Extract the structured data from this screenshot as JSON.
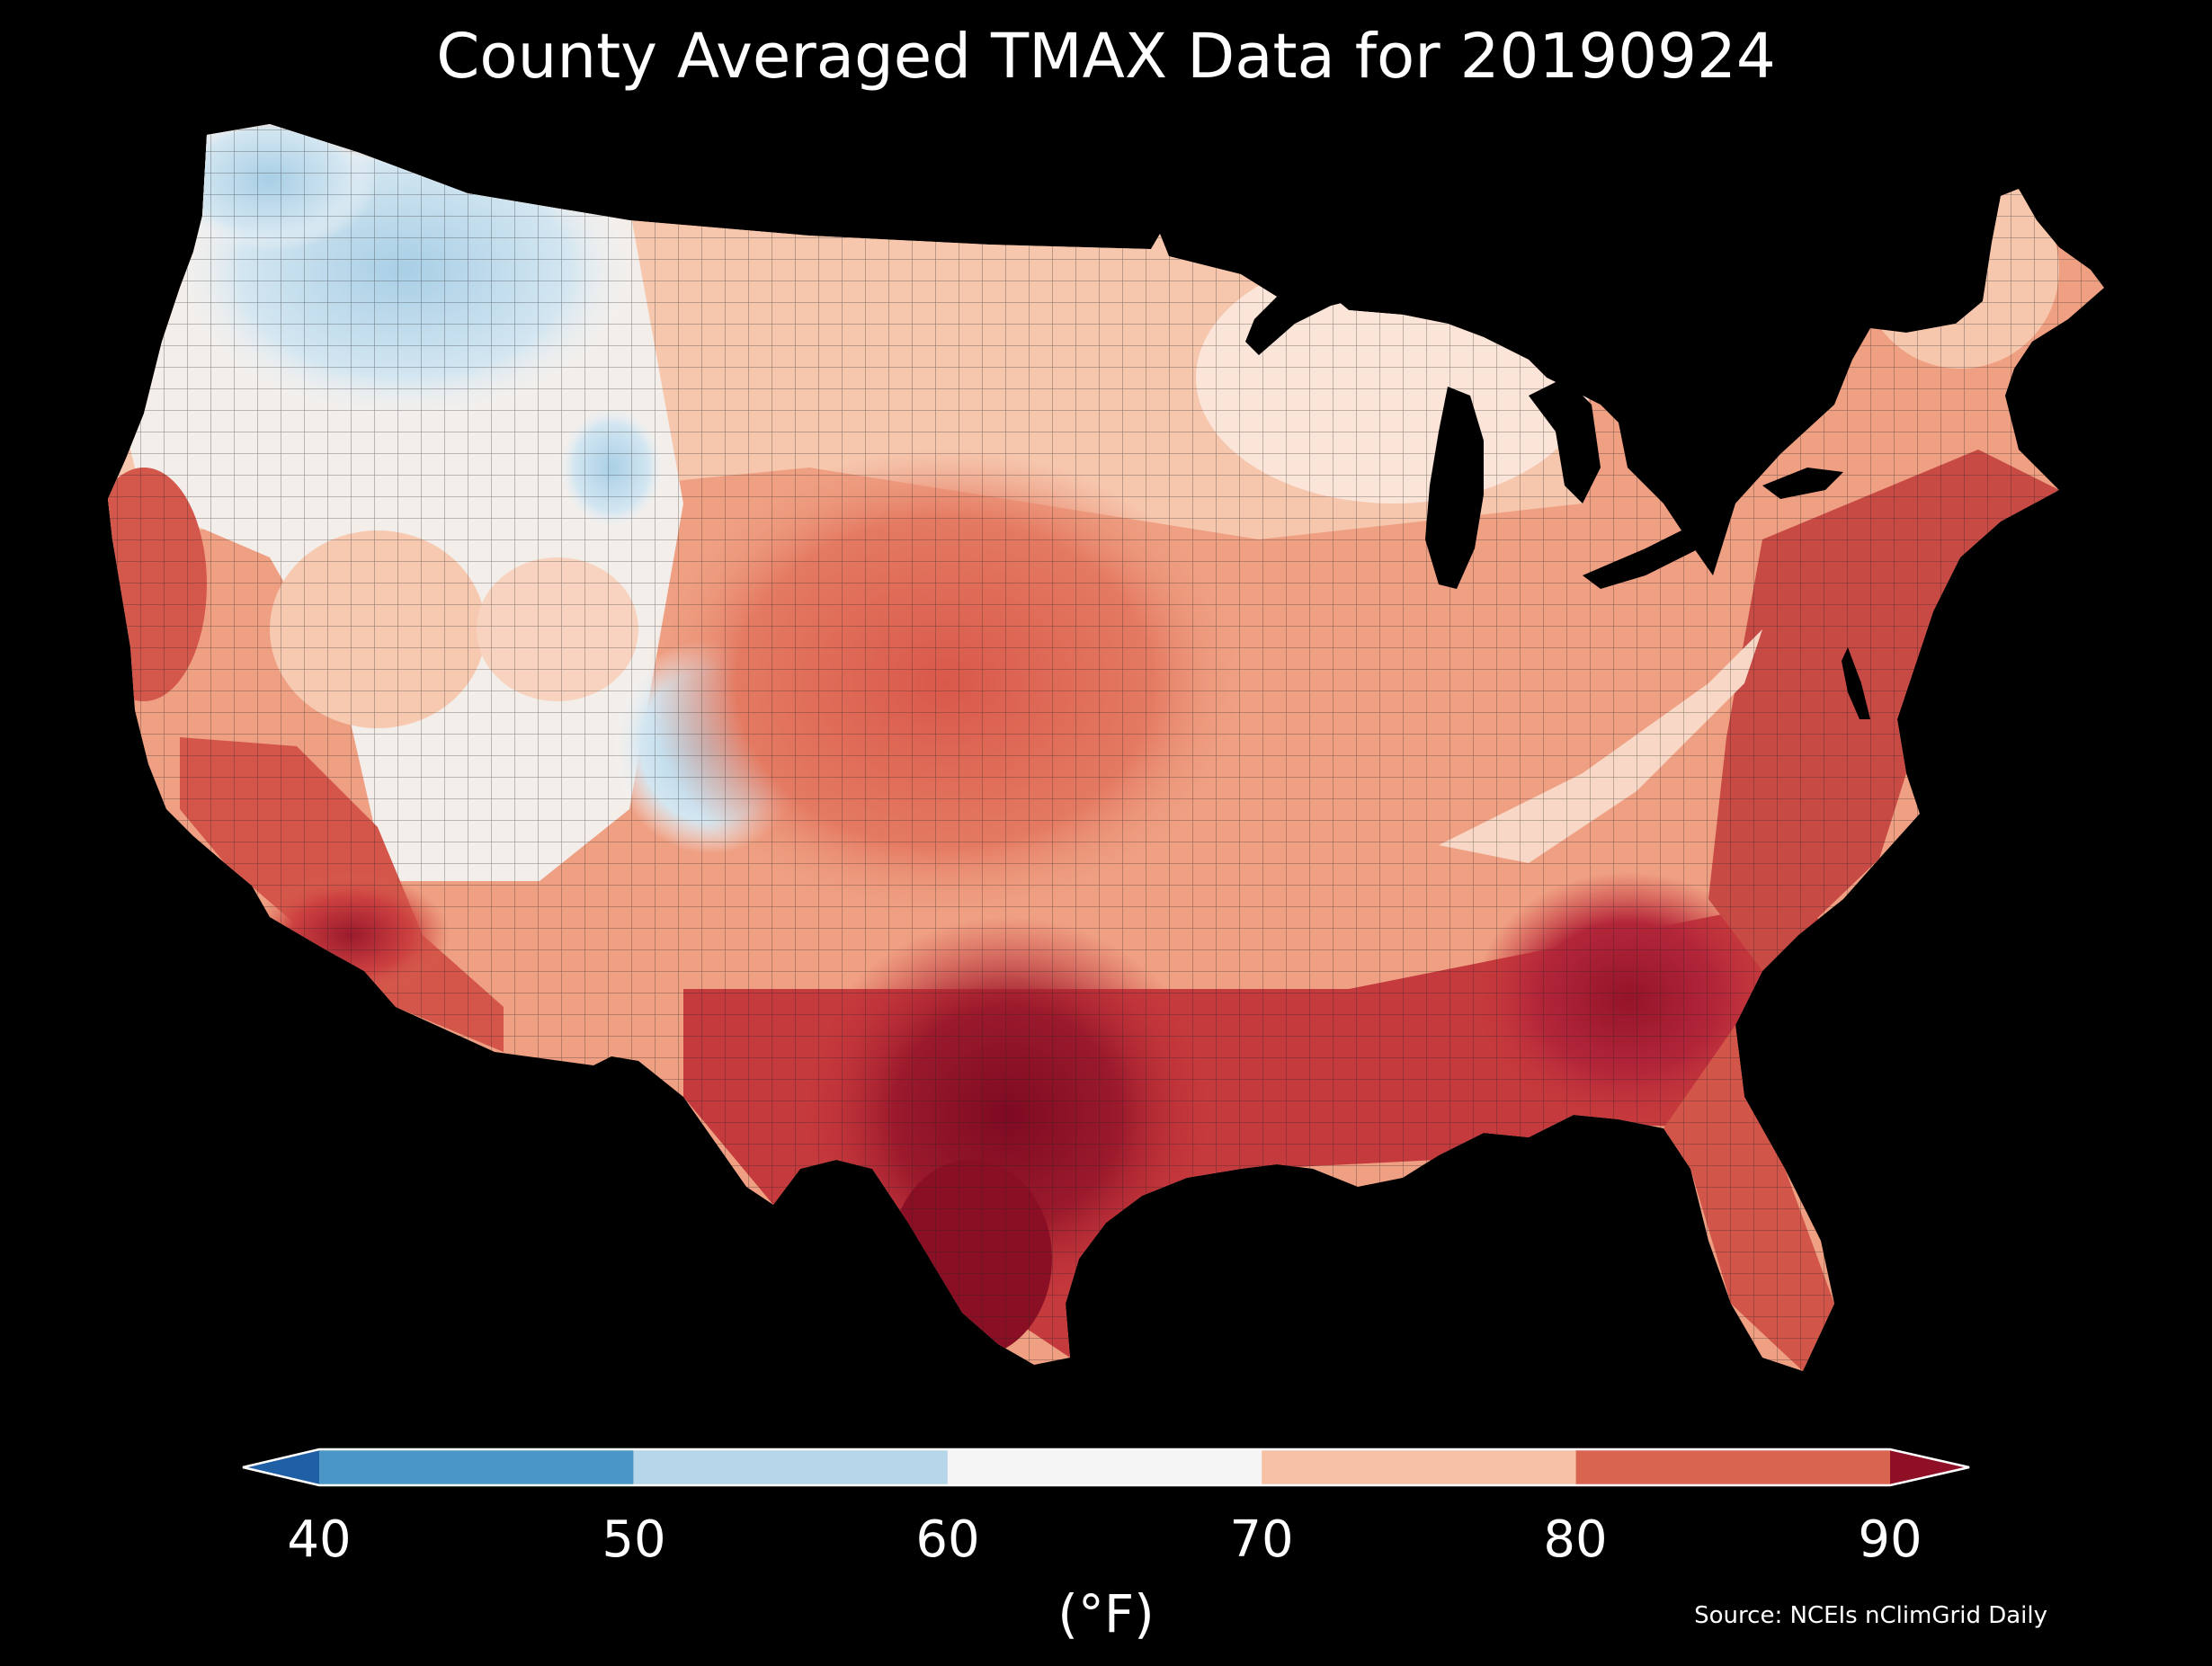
{
  "title": "County Averaged TMAX Data for 20190924",
  "colorbar": {
    "label": "(°F)",
    "ticks": [
      "40",
      "50",
      "60",
      "70",
      "80",
      "90"
    ],
    "bins": [
      {
        "range": "<40",
        "color": "#1f5fa6"
      },
      {
        "range": "40-50",
        "color": "#4a96c6"
      },
      {
        "range": "50-60",
        "color": "#b6d6e9"
      },
      {
        "range": "60-70",
        "color": "#f5f5f5"
      },
      {
        "range": "70-80",
        "color": "#f7c1a5"
      },
      {
        "range": "80-90",
        "color": "#d96450"
      },
      {
        "range": ">90",
        "color": "#8f1026"
      }
    ]
  },
  "source": "Source: NCEIs nClimGrid Daily",
  "palette": {
    "background": "#000000",
    "county_border": "#222222",
    "cold": "#b6d6e9",
    "cool": "#f5f5f5",
    "mild": "#f7c1a5",
    "warm": "#e8866a",
    "hot": "#c7343a",
    "very_hot": "#8f1026"
  }
}
